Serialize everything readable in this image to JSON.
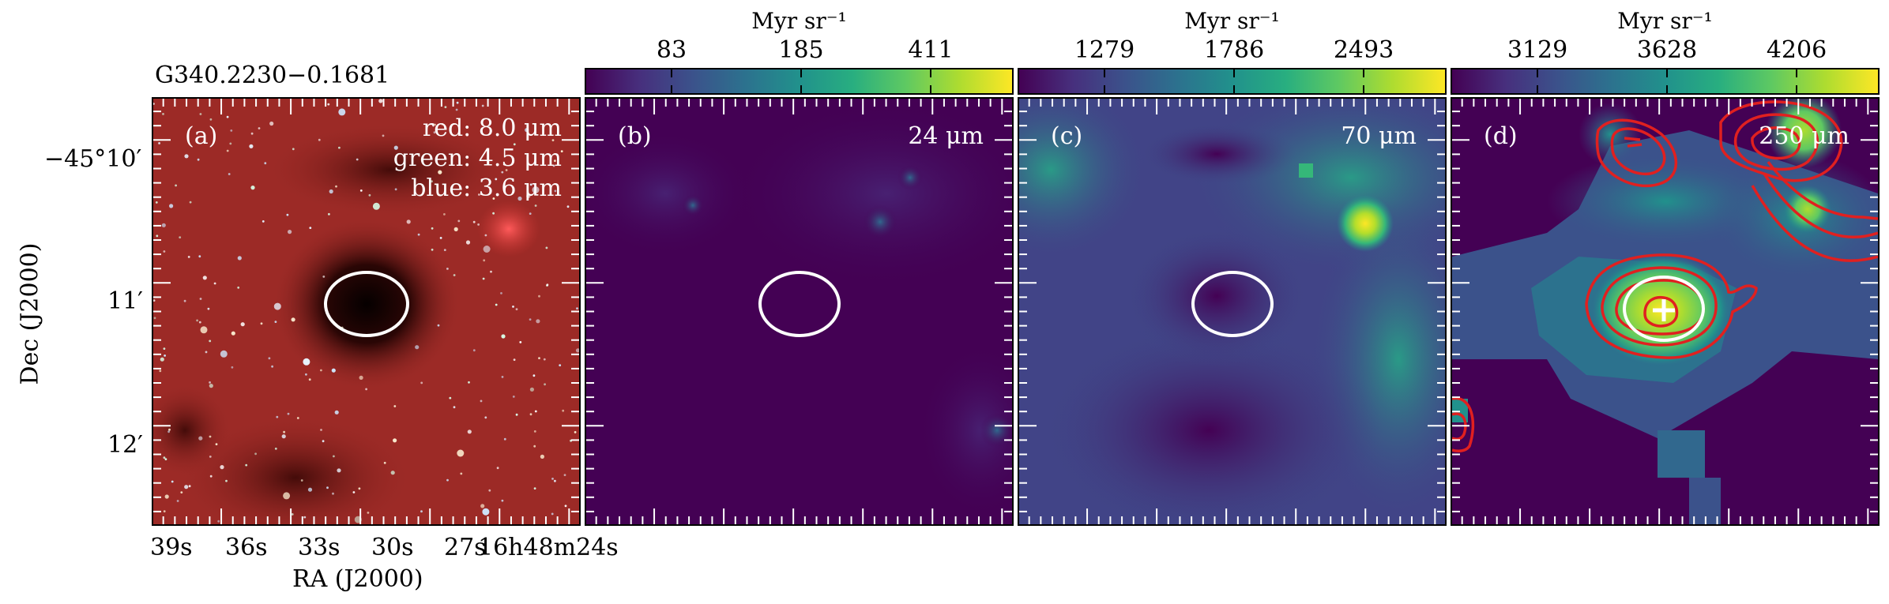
{
  "figure": {
    "source_name": "G340.2230−0.1681",
    "x_axis_label": "RA (J2000)",
    "y_axis_label": "Dec (J2000)",
    "dec_ticks": [
      "−45°10′",
      "11′",
      "12′"
    ],
    "ra_ticks": [
      "39s",
      "36s",
      "33s",
      "30s",
      "27s",
      "16h48m24s"
    ]
  },
  "panels": [
    {
      "id": "a",
      "label": "(a)",
      "lines": [
        "red: 8.0 μm",
        "green: 4.5 μm",
        "blue: 3.6 μm"
      ]
    },
    {
      "id": "b",
      "label": "(b)",
      "wavelength": "24 μm",
      "colorbar": {
        "unit": "Myr sr⁻¹",
        "ticks": [
          "83",
          "185",
          "411"
        ]
      }
    },
    {
      "id": "c",
      "label": "(c)",
      "wavelength": "70 μm",
      "colorbar": {
        "unit": "Myr sr⁻¹",
        "ticks": [
          "1279",
          "1786",
          "2493"
        ]
      }
    },
    {
      "id": "d",
      "label": "(d)",
      "wavelength": "250 μm",
      "colorbar": {
        "unit": "Myr sr⁻¹",
        "ticks": [
          "3129",
          "3628",
          "4206"
        ]
      }
    }
  ],
  "colors": {
    "viridis_dark": "#440154",
    "viridis_blue": "#3b528b",
    "viridis_teal": "#21918c",
    "viridis_green": "#5ec962",
    "viridis_yellow": "#fde725",
    "contour": "#e02020",
    "ellipse": "#ffffff",
    "rgb_background": "#9c2a26"
  }
}
